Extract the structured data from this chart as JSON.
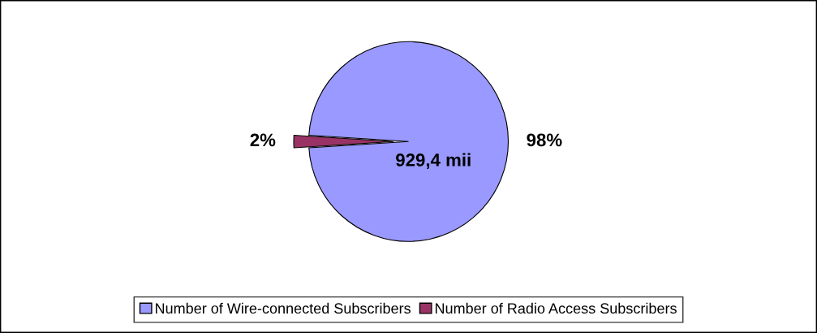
{
  "chart_data": {
    "type": "pie",
    "categories": [
      "Number of Wire-connected Subscribers",
      "Number of Radio Access Subscribers"
    ],
    "values": [
      98,
      2
    ],
    "colors": [
      "#9999ff",
      "#993366"
    ],
    "value_labels": [
      "98%",
      "2%"
    ],
    "annotations": [
      "929,4 mii"
    ],
    "legend": "bottom"
  }
}
